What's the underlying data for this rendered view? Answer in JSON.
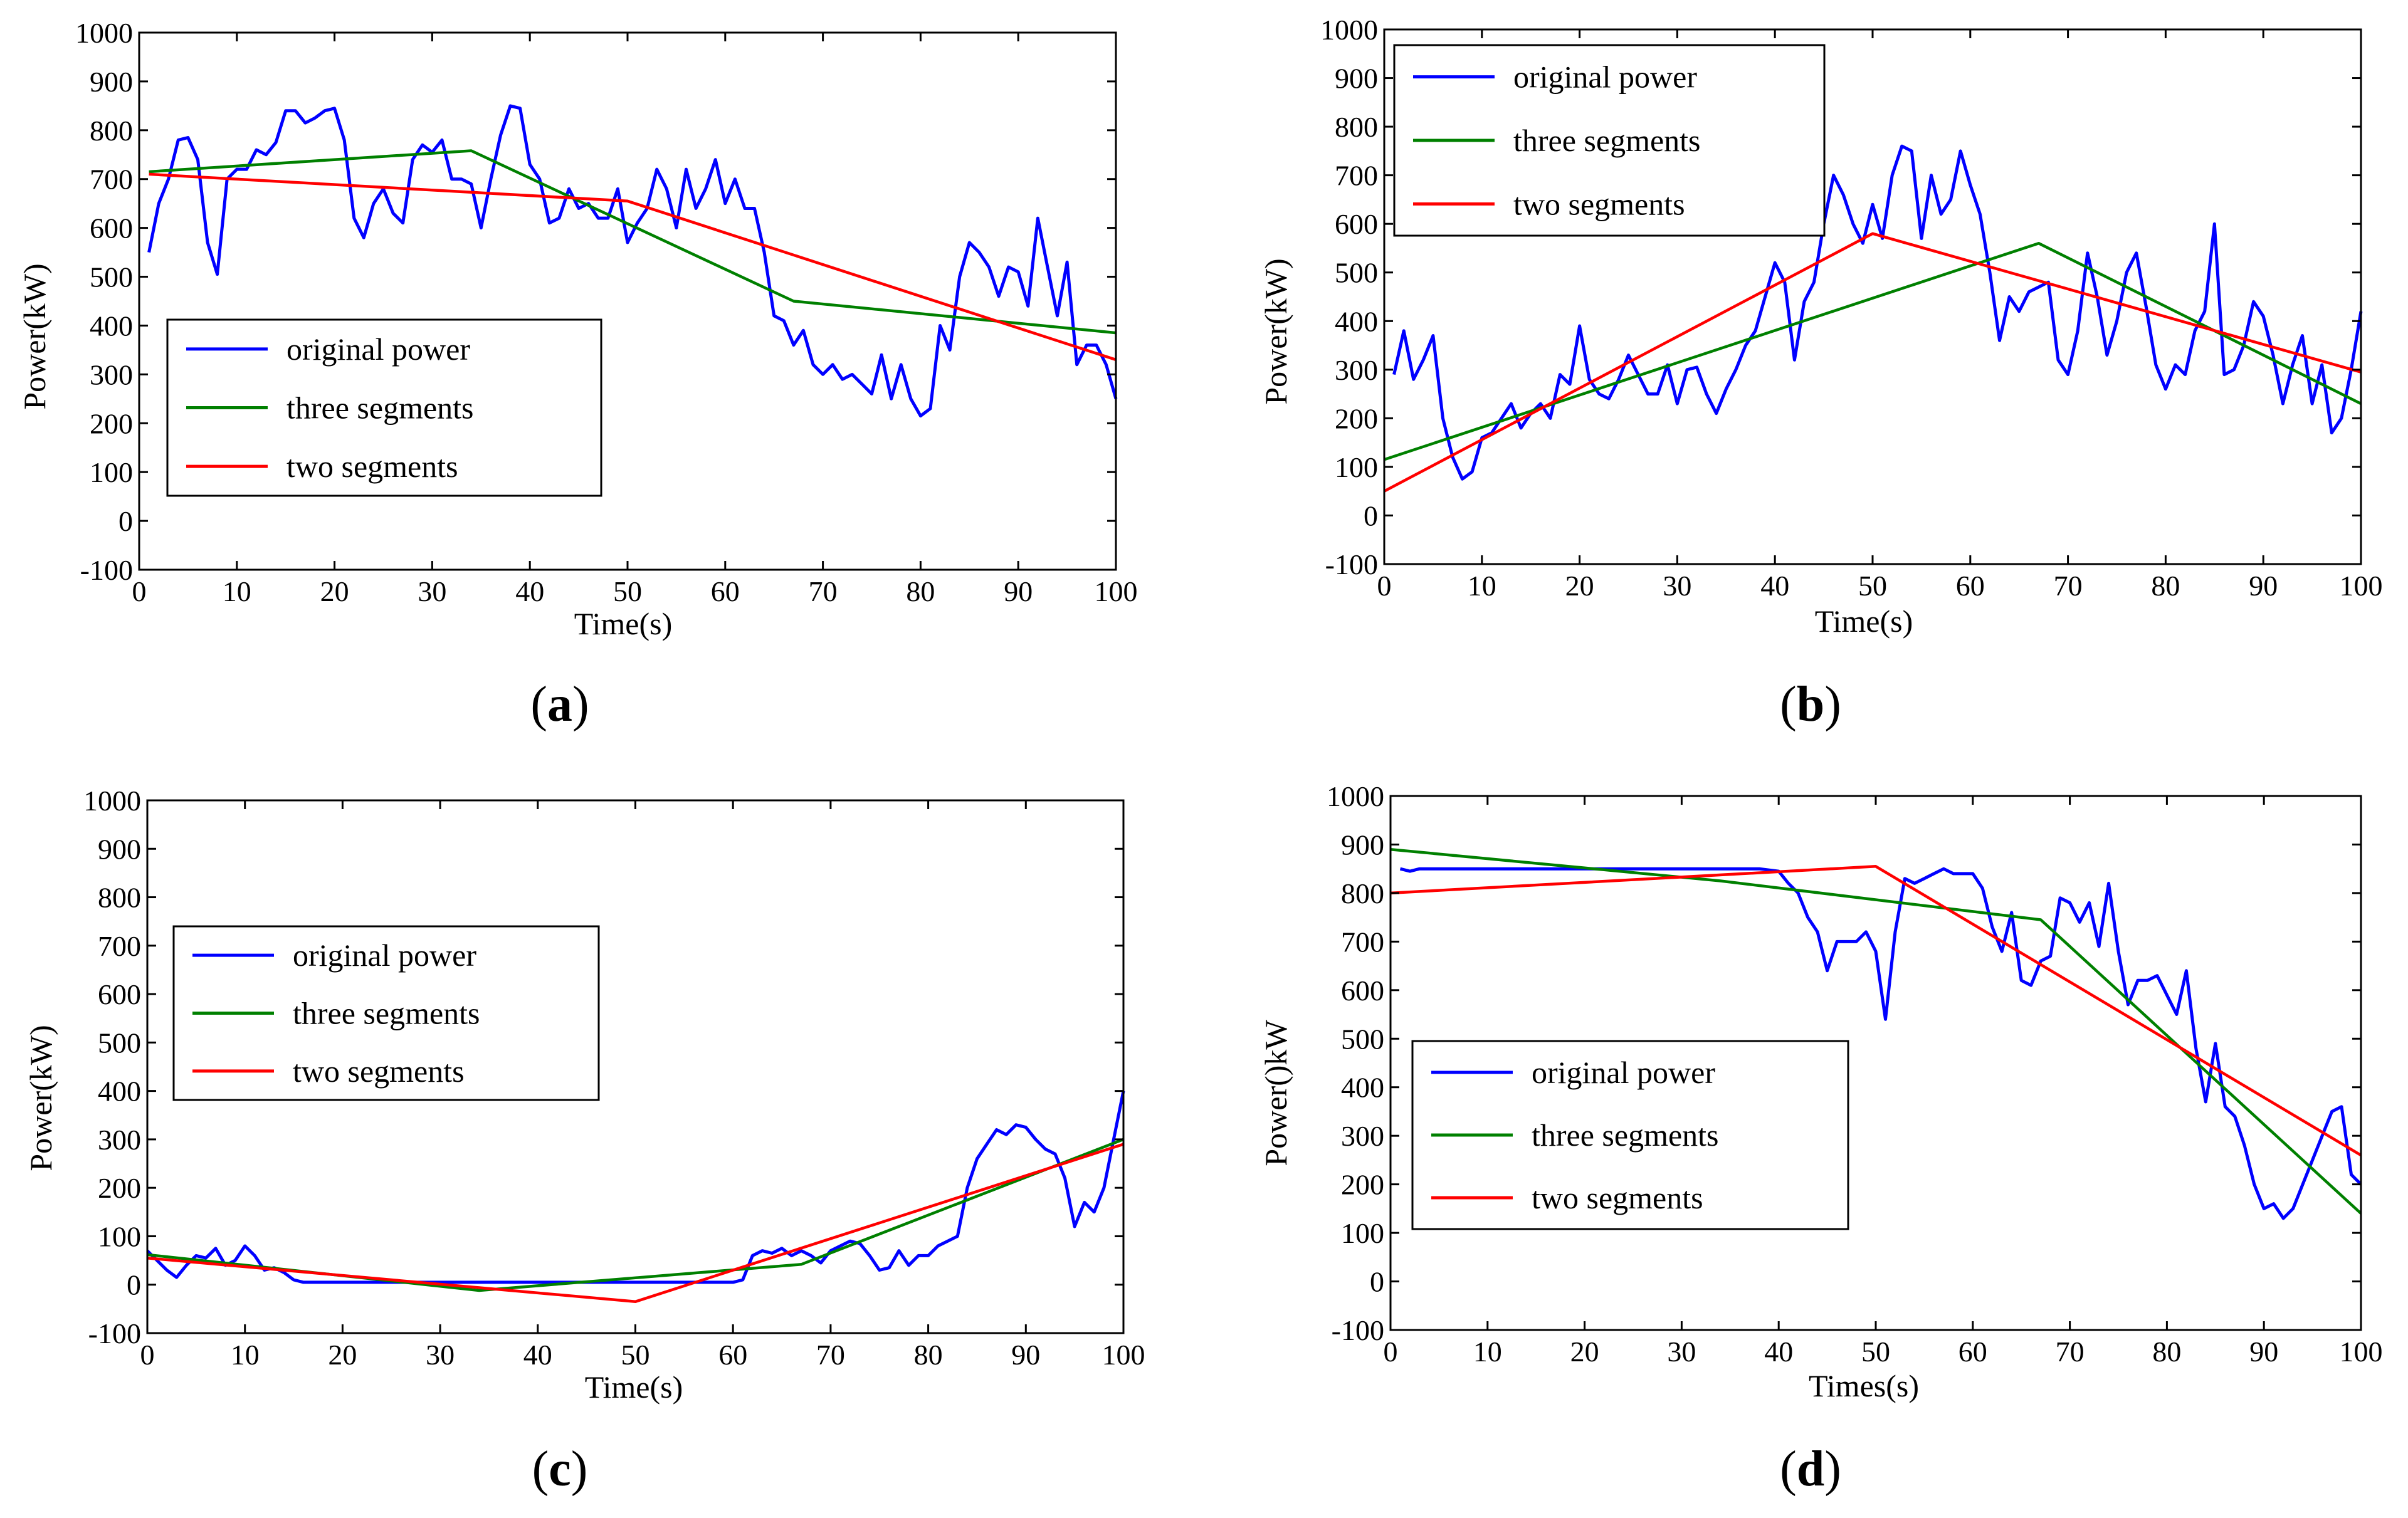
{
  "figure": {
    "panels": [
      {
        "label": "a",
        "open": "(",
        "close": ")"
      },
      {
        "label": "b",
        "open": "(",
        "close": ")"
      },
      {
        "label": "c",
        "open": "(",
        "close": ")"
      },
      {
        "label": "d",
        "open": "(",
        "close": ")"
      }
    ]
  },
  "colors": {
    "original": "#0000FF",
    "three": "#008000",
    "two": "#FF0000"
  },
  "chart_data": [
    {
      "type": "line",
      "panel": "a",
      "xlabel": "Time(s)",
      "ylabel": "Power(kW)",
      "xlim": [
        0,
        100
      ],
      "ylim": [
        -100,
        1000
      ],
      "xticks": [
        0,
        10,
        20,
        30,
        40,
        50,
        60,
        70,
        80,
        90,
        100
      ],
      "yticks": [
        -100,
        0,
        100,
        200,
        300,
        400,
        500,
        600,
        700,
        800,
        900,
        1000
      ],
      "legend": [
        "original power",
        "three segments",
        "two segments"
      ],
      "legend_position": "center-left",
      "series": [
        {
          "name": "original power",
          "color": "#0000FF",
          "x": [
            1,
            2,
            3,
            4,
            5,
            6,
            7,
            8,
            9,
            10,
            11,
            12,
            13,
            14,
            15,
            16,
            17,
            18,
            19,
            20,
            21,
            22,
            23,
            24,
            25,
            26,
            27,
            28,
            29,
            30,
            31,
            32,
            33,
            34,
            35,
            36,
            37,
            38,
            39,
            40,
            41,
            42,
            43,
            44,
            45,
            46,
            47,
            48,
            49,
            50,
            51,
            52,
            53,
            54,
            55,
            56,
            57,
            58,
            59,
            60,
            61,
            62,
            63,
            64,
            65,
            66,
            67,
            68,
            69,
            70,
            71,
            72,
            73,
            74,
            75,
            76,
            77,
            78,
            79,
            80,
            81,
            82,
            83,
            84,
            85,
            86,
            87,
            88,
            89,
            90,
            91,
            92,
            93,
            94,
            95,
            96,
            97,
            98,
            99,
            100
          ],
          "y": [
            550,
            650,
            700,
            780,
            785,
            740,
            570,
            505,
            700,
            720,
            720,
            760,
            750,
            775,
            840,
            840,
            815,
            825,
            840,
            845,
            780,
            620,
            580,
            650,
            680,
            630,
            610,
            740,
            770,
            755,
            780,
            700,
            700,
            690,
            600,
            700,
            790,
            850,
            845,
            730,
            700,
            610,
            620,
            680,
            640,
            650,
            620,
            620,
            680,
            570,
            610,
            640,
            720,
            680,
            600,
            720,
            640,
            680,
            740,
            650,
            700,
            640,
            640,
            550,
            420,
            410,
            360,
            390,
            320,
            300,
            320,
            290,
            300,
            280,
            260,
            340,
            250,
            320,
            250,
            215,
            230,
            400,
            350,
            500,
            570,
            550,
            520,
            460,
            520,
            510,
            440,
            620,
            520,
            420,
            530,
            320,
            360,
            360,
            320,
            250
          ]
        },
        {
          "name": "three segments",
          "color": "#008000",
          "x": [
            1,
            34,
            67,
            100
          ],
          "y": [
            715,
            758,
            450,
            385
          ]
        },
        {
          "name": "two segments",
          "color": "#FF0000",
          "x": [
            1,
            50,
            100
          ],
          "y": [
            710,
            655,
            330
          ]
        }
      ]
    },
    {
      "type": "line",
      "panel": "b",
      "xlabel": "Time(s)",
      "ylabel": "Power(kW)",
      "xlim": [
        0,
        100
      ],
      "ylim": [
        -100,
        1000
      ],
      "xticks": [
        0,
        10,
        20,
        30,
        40,
        50,
        60,
        70,
        80,
        90,
        100
      ],
      "yticks": [
        -100,
        0,
        100,
        200,
        300,
        400,
        500,
        600,
        700,
        800,
        900,
        1000
      ],
      "legend": [
        "original power",
        "three segments",
        "two segments"
      ],
      "legend_position": "top-left",
      "series": [
        {
          "name": "original power",
          "color": "#0000FF",
          "x": [
            1,
            2,
            3,
            4,
            5,
            6,
            7,
            8,
            9,
            10,
            11,
            12,
            13,
            14,
            15,
            16,
            17,
            18,
            19,
            20,
            21,
            22,
            23,
            24,
            25,
            26,
            27,
            28,
            29,
            30,
            31,
            32,
            33,
            34,
            35,
            36,
            37,
            38,
            39,
            40,
            41,
            42,
            43,
            44,
            45,
            46,
            47,
            48,
            49,
            50,
            51,
            52,
            53,
            54,
            55,
            56,
            57,
            58,
            59,
            60,
            61,
            62,
            63,
            64,
            65,
            66,
            67,
            68,
            69,
            70,
            71,
            72,
            73,
            74,
            75,
            76,
            77,
            78,
            79,
            80,
            81,
            82,
            83,
            84,
            85,
            86,
            87,
            88,
            89,
            90,
            91,
            92,
            93,
            94,
            95,
            96,
            97,
            98,
            99,
            100
          ],
          "y": [
            290,
            380,
            280,
            320,
            370,
            200,
            120,
            75,
            90,
            160,
            170,
            200,
            230,
            180,
            210,
            230,
            200,
            290,
            270,
            390,
            280,
            250,
            240,
            280,
            330,
            290,
            250,
            250,
            310,
            230,
            300,
            305,
            250,
            210,
            260,
            300,
            350,
            380,
            450,
            520,
            480,
            320,
            440,
            480,
            600,
            700,
            660,
            600,
            560,
            640,
            570,
            700,
            760,
            750,
            570,
            700,
            620,
            650,
            750,
            680,
            620,
            500,
            360,
            450,
            420,
            460,
            470,
            480,
            320,
            290,
            380,
            540,
            450,
            330,
            400,
            500,
            540,
            430,
            310,
            260,
            310,
            290,
            380,
            420,
            600,
            290,
            300,
            350,
            440,
            410,
            330,
            230,
            310,
            370,
            230,
            310,
            170,
            200,
            300,
            420
          ]
        },
        {
          "name": "three segments",
          "color": "#008000",
          "x": [
            0,
            67,
            100
          ],
          "y": [
            115,
            560,
            230
          ]
        },
        {
          "name": "two segments",
          "color": "#FF0000",
          "x": [
            0,
            50,
            100
          ],
          "y": [
            50,
            580,
            295
          ]
        }
      ]
    },
    {
      "type": "line",
      "panel": "c",
      "xlabel": "Time(s)",
      "ylabel": "Power(kW)",
      "xlim": [
        0,
        100
      ],
      "ylim": [
        -100,
        1000
      ],
      "xticks": [
        0,
        10,
        20,
        30,
        40,
        50,
        60,
        70,
        80,
        90,
        100
      ],
      "yticks": [
        -100,
        0,
        100,
        200,
        300,
        400,
        500,
        600,
        700,
        800,
        900,
        1000
      ],
      "legend": [
        "original power",
        "three segments",
        "two segments"
      ],
      "legend_position": "center-left",
      "series": [
        {
          "name": "original power",
          "color": "#0000FF",
          "x": [
            0,
            1,
            2,
            3,
            4,
            5,
            6,
            7,
            8,
            9,
            10,
            11,
            12,
            13,
            14,
            15,
            16,
            18,
            20,
            22,
            24,
            26,
            28,
            30,
            35,
            40,
            45,
            50,
            55,
            60,
            61,
            62,
            63,
            64,
            65,
            66,
            67,
            68,
            69,
            70,
            71,
            72,
            73,
            74,
            75,
            76,
            77,
            78,
            79,
            80,
            81,
            82,
            83,
            84,
            85,
            86,
            87,
            88,
            89,
            90,
            91,
            92,
            93,
            94,
            95,
            96,
            97,
            98,
            99,
            100
          ],
          "y": [
            70,
            50,
            30,
            15,
            40,
            60,
            55,
            75,
            40,
            50,
            80,
            60,
            30,
            35,
            25,
            10,
            5,
            5,
            5,
            5,
            5,
            5,
            5,
            5,
            5,
            5,
            5,
            5,
            5,
            5,
            10,
            60,
            70,
            65,
            75,
            60,
            70,
            60,
            45,
            70,
            80,
            90,
            85,
            60,
            30,
            35,
            70,
            40,
            60,
            60,
            80,
            90,
            100,
            200,
            260,
            290,
            320,
            310,
            330,
            325,
            300,
            280,
            270,
            220,
            120,
            170,
            150,
            200,
            300,
            400
          ]
        },
        {
          "name": "three segments",
          "color": "#008000",
          "x": [
            0,
            34,
            67,
            100
          ],
          "y": [
            62,
            -12,
            42,
            300
          ]
        },
        {
          "name": "two segments",
          "color": "#FF0000",
          "x": [
            0,
            50,
            100
          ],
          "y": [
            55,
            -35,
            290
          ]
        }
      ]
    },
    {
      "type": "line",
      "panel": "d",
      "xlabel": "Times(s)",
      "ylabel": "Power()kW",
      "xlim": [
        0,
        100
      ],
      "ylim": [
        -100,
        1000
      ],
      "xticks": [
        0,
        10,
        20,
        30,
        40,
        50,
        60,
        70,
        80,
        90,
        100
      ],
      "yticks": [
        -100,
        0,
        100,
        200,
        300,
        400,
        500,
        600,
        700,
        800,
        900,
        1000
      ],
      "legend": [
        "original power",
        "three segments",
        "two segments"
      ],
      "legend_position": "center-left",
      "series": [
        {
          "name": "original power",
          "color": "#0000FF",
          "x": [
            1,
            2,
            3,
            5,
            10,
            15,
            20,
            25,
            30,
            35,
            38,
            40,
            41,
            42,
            43,
            44,
            45,
            46,
            47,
            48,
            49,
            50,
            51,
            52,
            53,
            54,
            55,
            56,
            57,
            58,
            59,
            60,
            61,
            62,
            63,
            64,
            65,
            66,
            67,
            68,
            69,
            70,
            71,
            72,
            73,
            74,
            75,
            76,
            77,
            78,
            79,
            80,
            81,
            82,
            83,
            84,
            85,
            86,
            87,
            88,
            89,
            90,
            91,
            92,
            93,
            94,
            95,
            96,
            97,
            98,
            99,
            100
          ],
          "y": [
            850,
            845,
            850,
            850,
            850,
            850,
            850,
            850,
            850,
            850,
            850,
            845,
            820,
            800,
            750,
            720,
            640,
            700,
            700,
            700,
            720,
            680,
            540,
            720,
            830,
            820,
            830,
            840,
            850,
            840,
            840,
            840,
            810,
            730,
            680,
            760,
            620,
            610,
            660,
            670,
            790,
            780,
            740,
            780,
            690,
            820,
            680,
            570,
            620,
            620,
            630,
            590,
            550,
            640,
            480,
            370,
            490,
            360,
            340,
            280,
            200,
            150,
            160,
            130,
            150,
            200,
            250,
            300,
            350,
            360,
            220,
            200
          ]
        },
        {
          "name": "three segments",
          "color": "#008000",
          "x": [
            0,
            34,
            67,
            100
          ],
          "y": [
            890,
            825,
            745,
            140
          ]
        },
        {
          "name": "two segments",
          "color": "#FF0000",
          "x": [
            0,
            50,
            100
          ],
          "y": [
            800,
            855,
            260
          ]
        }
      ]
    }
  ]
}
